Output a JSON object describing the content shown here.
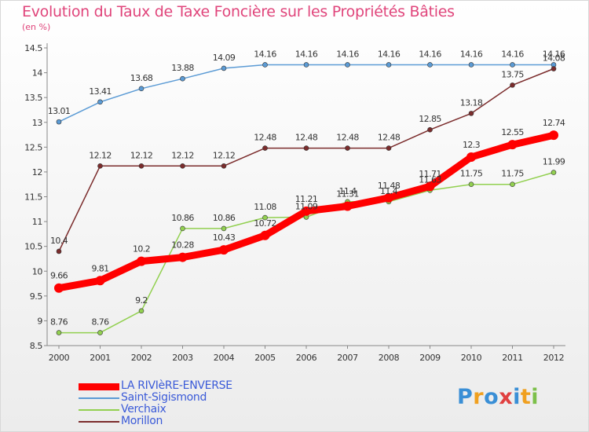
{
  "header": {
    "title": "Evolution du Taux de Taxe Foncière sur les Propriétés Bâties",
    "unit": "(en %)"
  },
  "logo": {
    "letters": [
      "P",
      "r",
      "o",
      "x",
      "i",
      "t",
      "i"
    ],
    "colors": [
      "#3a8fd6",
      "#f0a020",
      "#3a8fd6",
      "#e04040",
      "#3a8fd6",
      "#f0a020",
      "#7cc04a"
    ]
  },
  "chart_data": {
    "type": "line",
    "title": "Evolution du Taux de Taxe Foncière sur les Propriétés Bâties",
    "ylabel": "(en %)",
    "xlabel": "",
    "x": [
      "2000",
      "2001",
      "2002",
      "2003",
      "2004",
      "2005",
      "2006",
      "2007",
      "2008",
      "2009",
      "2010",
      "2011",
      "2012"
    ],
    "ylim": [
      8.5,
      14.5
    ],
    "yticks": [
      "8.5",
      "9",
      "9.5",
      "10",
      "10.5",
      "11",
      "11.5",
      "12",
      "12.5",
      "13",
      "13.5",
      "14",
      "14.5"
    ],
    "grid": false,
    "legend_position": "bottom-left",
    "series": [
      {
        "name": "LA RIVIèRE-ENVERSE",
        "color": "#ff0000",
        "values": [
          9.66,
          9.81,
          10.2,
          10.28,
          10.43,
          10.72,
          11.21,
          11.31,
          11.48,
          11.71,
          12.3,
          12.55,
          12.74
        ],
        "labels": [
          "9.66",
          "9.81",
          "10.2",
          "10.28",
          "10.43",
          "10.72",
          "11.21",
          "11.31",
          "11.48",
          "11.71",
          "12.3",
          "12.55",
          "12.74"
        ]
      },
      {
        "name": "Saint-Sigismond",
        "color": "#5b9bd5",
        "values": [
          13.01,
          13.41,
          13.68,
          13.88,
          14.09,
          14.16,
          14.16,
          14.16,
          14.16,
          14.16,
          14.16,
          14.16,
          14.16
        ],
        "labels": [
          "13.01",
          "13.41",
          "13.68",
          "13.88",
          "14.09",
          "14.16",
          "14.16",
          "14.16",
          "14.16",
          "14.16",
          "14.16",
          "14.16",
          "14.16"
        ]
      },
      {
        "name": "Verchaix",
        "color": "#92d050",
        "values": [
          8.76,
          8.76,
          9.2,
          10.86,
          10.86,
          11.08,
          11.09,
          11.4,
          11.4,
          11.63,
          11.75,
          11.75,
          11.99
        ],
        "labels": [
          "8.76",
          "8.76",
          "9.2",
          "10.86",
          "10.86",
          "11.08",
          "11.09",
          "11.4",
          "11.4",
          "11.63",
          "11.75",
          "11.75",
          "11.99"
        ]
      },
      {
        "name": "Morillon",
        "color": "#7b2c2c",
        "values": [
          10.4,
          12.12,
          12.12,
          12.12,
          12.12,
          12.48,
          12.48,
          12.48,
          12.48,
          12.85,
          13.18,
          13.75,
          14.08
        ],
        "labels": [
          "10.4",
          "12.12",
          "12.12",
          "12.12",
          "12.12",
          "12.48",
          "12.48",
          "12.48",
          "12.48",
          "12.85",
          "13.18",
          "13.75",
          "14.08"
        ]
      }
    ]
  }
}
